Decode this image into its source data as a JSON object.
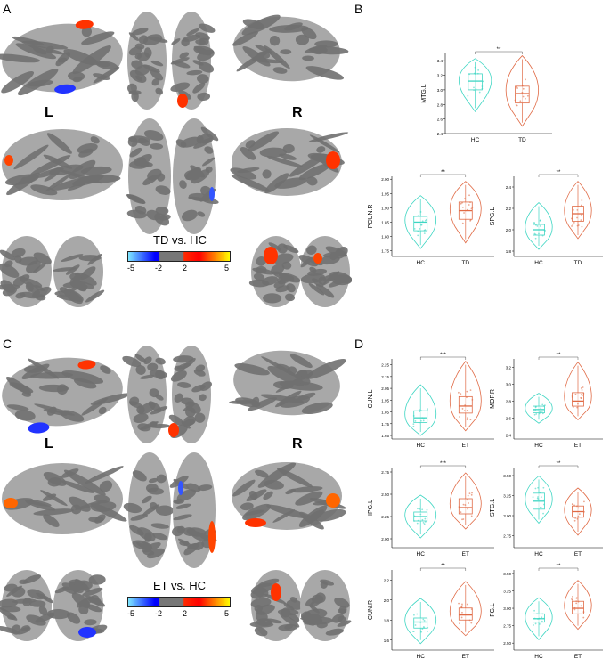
{
  "panels": {
    "A": {
      "letter": "A",
      "left_label": "L",
      "right_label": "R",
      "colorbar": {
        "title": "TD vs. HC",
        "ticks": [
          "-5",
          "-2",
          "2",
          "5"
        ]
      }
    },
    "B": {
      "letter": "B"
    },
    "C": {
      "letter": "C",
      "left_label": "L",
      "right_label": "R",
      "colorbar": {
        "title": "ET vs. HC",
        "ticks": [
          "-5",
          "-2",
          "2",
          "5"
        ]
      }
    },
    "D": {
      "letter": "D"
    }
  },
  "colors": {
    "hc": "#3ed6c3",
    "patient": "#e06a45",
    "cortex_light": "#a8a8a8",
    "cortex_dark": "#707070"
  },
  "chart_data": [
    {
      "type": "violin-box",
      "ylabel": "MTG.L",
      "categories": [
        "HC",
        "TD"
      ],
      "sig": "**",
      "yticks": [
        "2.4",
        "2.6",
        "2.8",
        "3.0",
        "3.2",
        "3.4"
      ],
      "ylim": [
        2.4,
        3.5
      ],
      "medians": [
        3.12,
        2.95
      ],
      "q1": [
        3.0,
        2.82
      ],
      "q3": [
        3.22,
        3.05
      ],
      "wmin": [
        2.75,
        2.55
      ],
      "wmax": [
        3.38,
        3.42
      ]
    },
    {
      "type": "violin-box",
      "ylabel": "PCUN.R",
      "categories": [
        "HC",
        "TD"
      ],
      "sig": "**",
      "yticks": [
        "1.75",
        "1.80",
        "1.85",
        "1.90",
        "1.95",
        "2.00"
      ],
      "ylim": [
        1.73,
        2.01
      ],
      "medians": [
        1.85,
        1.89
      ],
      "q1": [
        1.82,
        1.86
      ],
      "q3": [
        1.87,
        1.92
      ],
      "wmin": [
        1.77,
        1.79
      ],
      "wmax": [
        1.93,
        1.98
      ]
    },
    {
      "type": "violin-box",
      "ylabel": "SPG.L",
      "categories": [
        "HC",
        "TD"
      ],
      "sig": "**",
      "yticks": [
        "1.8",
        "2.0",
        "2.2",
        "2.4"
      ],
      "ylim": [
        1.75,
        2.5
      ],
      "medians": [
        2.0,
        2.15
      ],
      "q1": [
        1.95,
        2.08
      ],
      "q3": [
        2.05,
        2.22
      ],
      "wmin": [
        1.85,
        1.95
      ],
      "wmax": [
        2.22,
        2.42
      ]
    },
    {
      "type": "violin-box",
      "ylabel": "CUN.L",
      "categories": [
        "HC",
        "ET"
      ],
      "sig": "***",
      "yticks": [
        "1.65",
        "1.75",
        "1.85",
        "1.95",
        "2.05",
        "2.15",
        "2.25"
      ],
      "ylim": [
        1.62,
        2.3
      ],
      "medians": [
        1.8,
        1.9
      ],
      "q1": [
        1.76,
        1.84
      ],
      "q3": [
        1.86,
        1.98
      ],
      "wmin": [
        1.68,
        1.72
      ],
      "wmax": [
        2.05,
        2.25
      ]
    },
    {
      "type": "violin-box",
      "ylabel": "MOF.R",
      "categories": [
        "HC",
        "ET"
      ],
      "sig": "**",
      "yticks": [
        "2.4",
        "2.6",
        "2.8",
        "3.0",
        "3.2"
      ],
      "ylim": [
        2.35,
        3.3
      ],
      "medians": [
        2.7,
        2.8
      ],
      "q1": [
        2.66,
        2.74
      ],
      "q3": [
        2.74,
        2.9
      ],
      "wmin": [
        2.58,
        2.62
      ],
      "wmax": [
        2.85,
        3.22
      ]
    },
    {
      "type": "violin-box",
      "ylabel": "IPG.L",
      "categories": [
        "HC",
        "ET"
      ],
      "sig": "***",
      "yticks": [
        "2.00",
        "2.25",
        "2.50",
        "2.75"
      ],
      "ylim": [
        1.9,
        2.8
      ],
      "medians": [
        2.25,
        2.35
      ],
      "q1": [
        2.2,
        2.28
      ],
      "q3": [
        2.3,
        2.45
      ],
      "wmin": [
        2.05,
        2.15
      ],
      "wmax": [
        2.45,
        2.7
      ]
    },
    {
      "type": "violin-box",
      "ylabel": "STG.L",
      "categories": [
        "HC",
        "ET"
      ],
      "sig": "**",
      "yticks": [
        "2.75",
        "3.00",
        "3.25",
        "3.50"
      ],
      "ylim": [
        2.6,
        3.6
      ],
      "medians": [
        3.18,
        3.05
      ],
      "q1": [
        3.08,
        2.98
      ],
      "q3": [
        3.28,
        3.12
      ],
      "wmin": [
        2.95,
        2.8
      ],
      "wmax": [
        3.45,
        3.3
      ]
    },
    {
      "type": "violin-box",
      "ylabel": "CUN.R",
      "categories": [
        "HC",
        "ET"
      ],
      "sig": "**",
      "yticks": [
        "1.6",
        "1.8",
        "2.0",
        "2.2"
      ],
      "ylim": [
        1.5,
        2.3
      ],
      "medians": [
        1.78,
        1.85
      ],
      "q1": [
        1.72,
        1.8
      ],
      "q3": [
        1.82,
        1.92
      ],
      "wmin": [
        1.6,
        1.68
      ],
      "wmax": [
        1.98,
        2.15
      ]
    },
    {
      "type": "violin-box",
      "ylabel": "FG.L",
      "categories": [
        "HC",
        "ET"
      ],
      "sig": "**",
      "yticks": [
        "2.50",
        "2.75",
        "3.00",
        "3.25",
        "3.50"
      ],
      "ylim": [
        2.4,
        3.55
      ],
      "medians": [
        2.85,
        3.0
      ],
      "q1": [
        2.8,
        2.92
      ],
      "q3": [
        2.92,
        3.1
      ],
      "wmin": [
        2.6,
        2.75
      ],
      "wmax": [
        3.1,
        3.35
      ]
    }
  ]
}
